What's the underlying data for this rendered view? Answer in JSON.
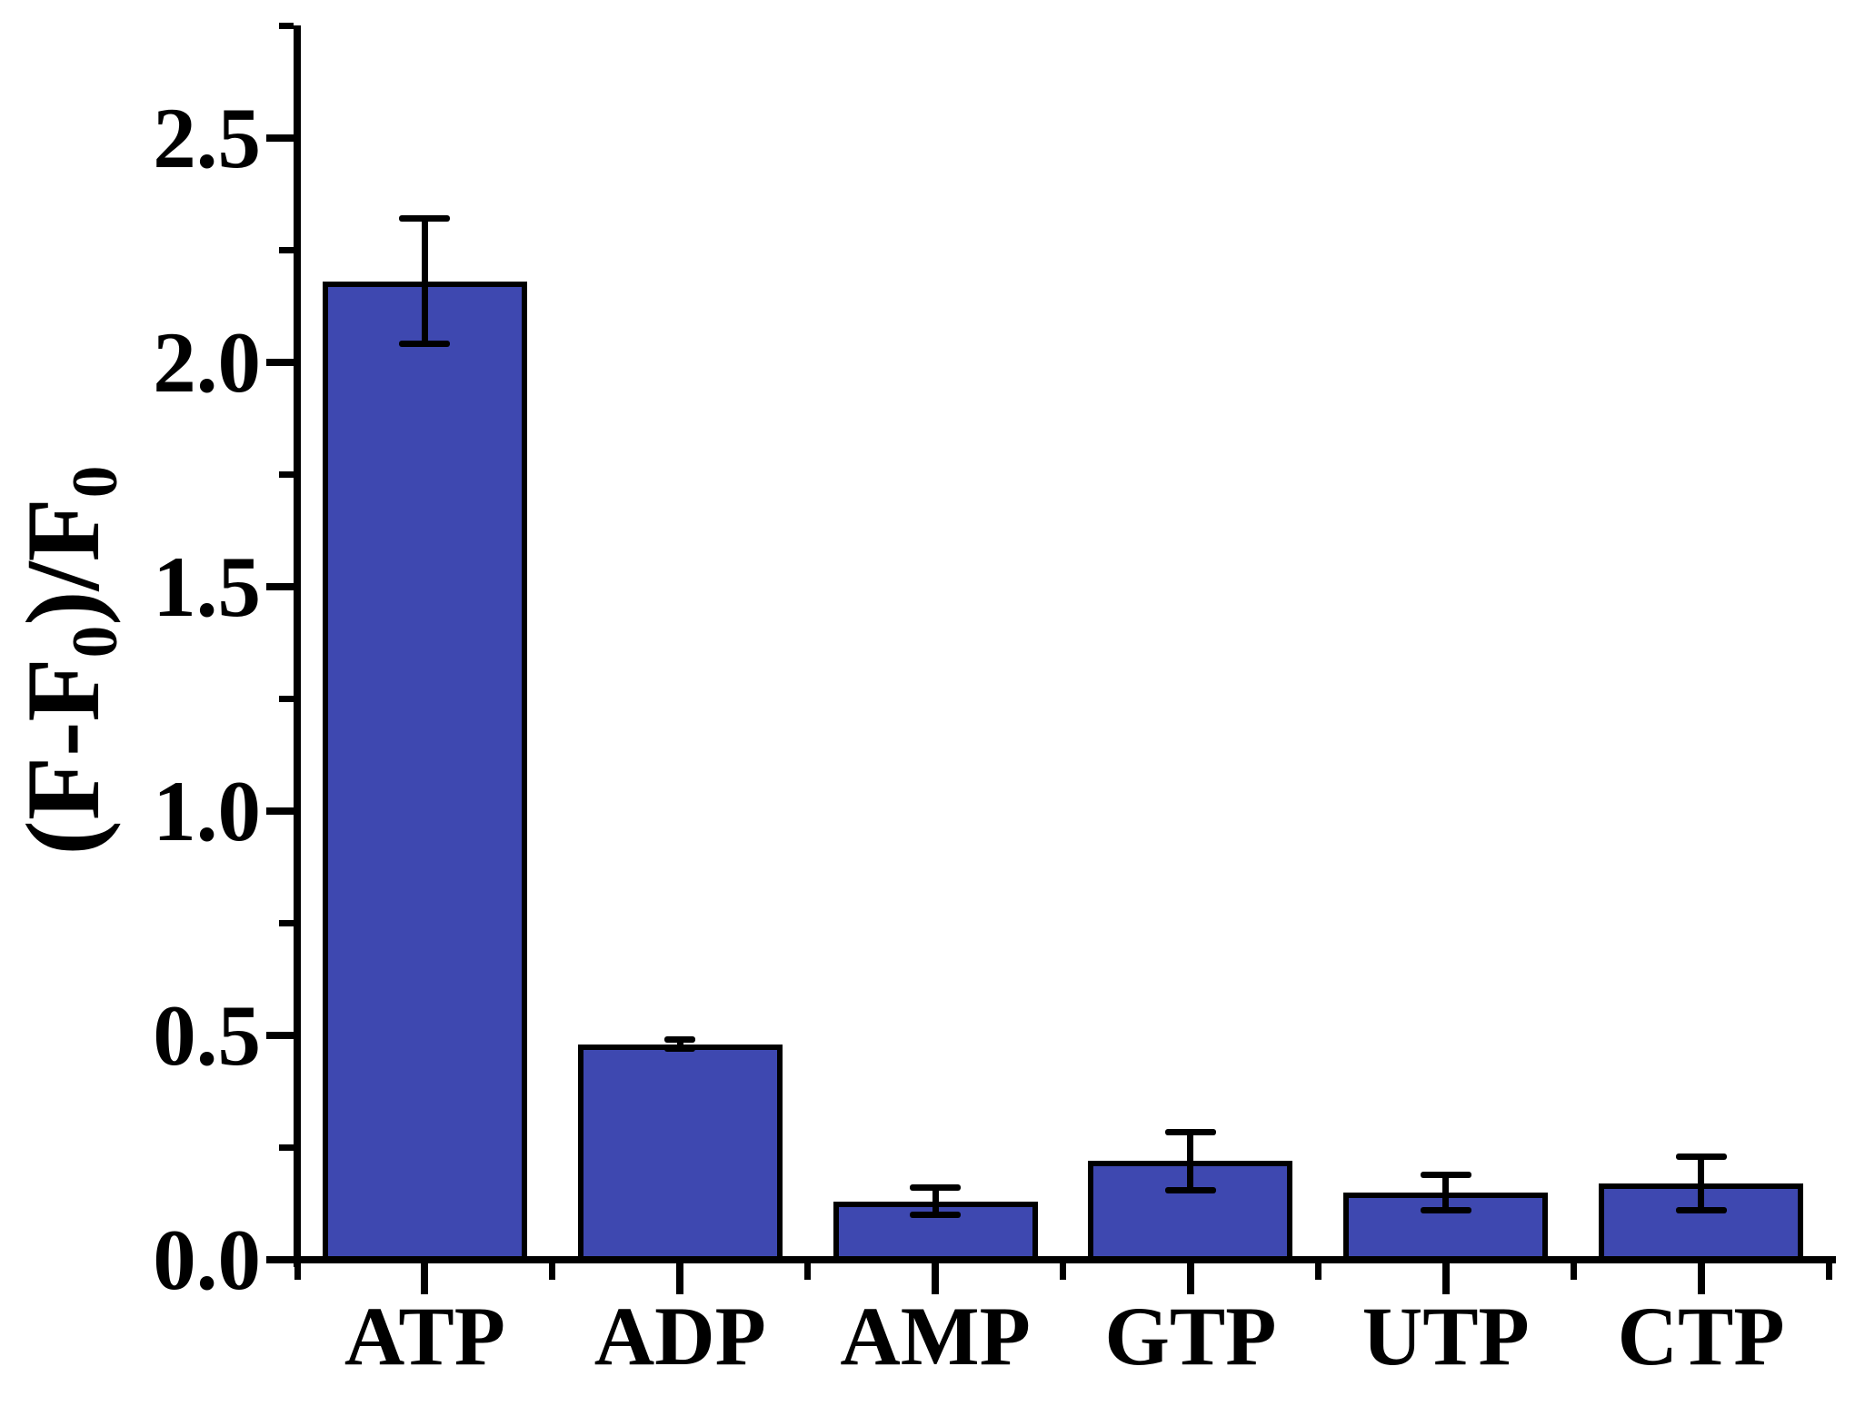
{
  "figure": {
    "background": "#ffffff",
    "text_color": "#000000"
  },
  "chart_data": {
    "type": "bar",
    "title": "",
    "xlabel": "",
    "ylabel": "(F-F0)/F0",
    "ylabel_rich": [
      {
        "text": "(F-F",
        "sub": false
      },
      {
        "text": "0",
        "sub": true
      },
      {
        "text": ")/F",
        "sub": false
      },
      {
        "text": "0",
        "sub": true
      }
    ],
    "categories": [
      "ATP",
      "ADP",
      "AMP",
      "GTP",
      "UTP",
      "CTP"
    ],
    "values": [
      2.18,
      0.48,
      0.13,
      0.22,
      0.15,
      0.17
    ],
    "errors": [
      0.14,
      0.01,
      0.03,
      0.065,
      0.04,
      0.06
    ],
    "ylim": [
      0,
      2.75
    ],
    "y_major_ticks": [
      0.0,
      0.5,
      1.0,
      1.5,
      2.0,
      2.5
    ],
    "y_tick_labels": [
      "0.0",
      "0.5",
      "1.0",
      "1.5",
      "2.0",
      "2.5"
    ],
    "y_minor_step": 0.25,
    "grid": false,
    "legend": null,
    "bar_color": "#3E48B0",
    "bar_border_color": "#000000",
    "error_bar_color": "#000000"
  }
}
